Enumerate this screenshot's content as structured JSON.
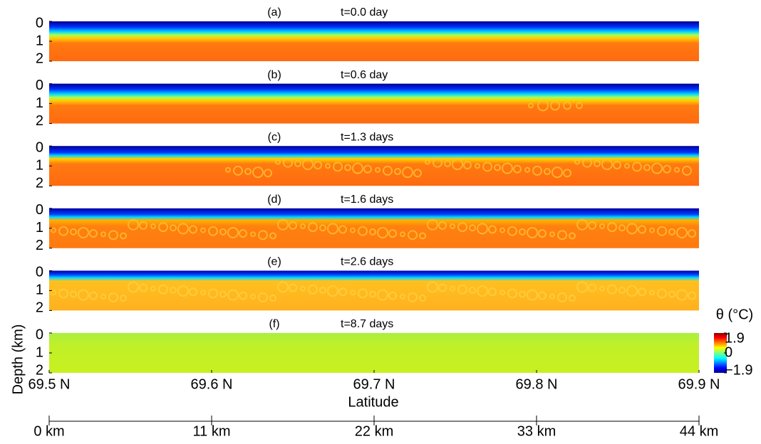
{
  "chart_data": {
    "type": "heatmap",
    "panels": [
      {
        "label": "(a)",
        "time": "t=0.0 day"
      },
      {
        "label": "(b)",
        "time": "t=0.6 day"
      },
      {
        "label": "(c)",
        "time": "t=1.3 days"
      },
      {
        "label": "(d)",
        "time": "t=1.6 days"
      },
      {
        "label": "(e)",
        "time": "t=2.6 days"
      },
      {
        "label": "(f)",
        "time": "t=8.7 days"
      }
    ],
    "ylabel": "Depth (km)",
    "ylim": [
      0,
      2
    ],
    "yticks": [
      0,
      1,
      2
    ],
    "xlabel": "Latitude",
    "xlim": [
      69.5,
      69.9
    ],
    "xticks": [
      {
        "value": 69.5,
        "label": "69.5 N"
      },
      {
        "value": 69.6,
        "label": "69.6 N"
      },
      {
        "value": 69.7,
        "label": "69.7 N"
      },
      {
        "value": 69.8,
        "label": "69.8 N"
      },
      {
        "value": 69.9,
        "label": "69.9 N"
      }
    ],
    "distance_lim": [
      0,
      44
    ],
    "distance_ticks": [
      {
        "value": 0,
        "label": "0 km"
      },
      {
        "value": 11,
        "label": "11 km"
      },
      {
        "value": 22,
        "label": "22 km"
      },
      {
        "value": 33,
        "label": "33 km"
      },
      {
        "value": 44,
        "label": "44 km"
      }
    ],
    "colorbar": {
      "title": "θ (°C)",
      "clim": [
        -1.9,
        1.9
      ],
      "ticks": [
        1.9,
        0,
        {
          "value": -1.9,
          "label": "−1.9"
        }
      ]
    }
  }
}
